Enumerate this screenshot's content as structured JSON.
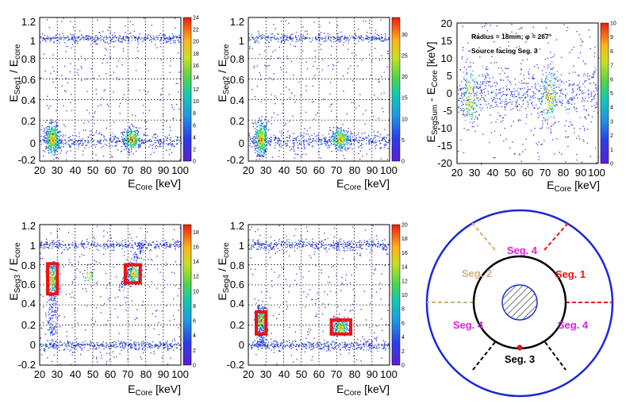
{
  "colors": {
    "frame": "#000000",
    "grid": "#000000",
    "signal_box": "#ee1111",
    "outer_circle": "#1a28d6",
    "inner_circle": "#000000",
    "core_hatch": "#2233cc",
    "tan": "#d8b07a",
    "red": "#ee1111",
    "magenta": "#e020e0",
    "black": "#000000",
    "source_dot": "#dd1111"
  },
  "chart_data": [
    {
      "id": "seg1",
      "type": "heatmap",
      "title": "",
      "xlabel": {
        "base": "E",
        "sub": "Core",
        "unit": " [keV]"
      },
      "ylabel": {
        "base": "E",
        "sub": "Seg1",
        "mid": " / E",
        "sub2": "core"
      },
      "xlim": [
        20,
        100
      ],
      "ylim": [
        -0.2,
        1.2
      ],
      "xticks": [
        "20",
        "30",
        "40",
        "50",
        "60",
        "70",
        "80",
        "90",
        "100"
      ],
      "yticks": [
        "-0.2",
        "0",
        "0.2",
        "0.4",
        "0.6",
        "0.8",
        "1",
        "1.2"
      ],
      "zmax": 24,
      "zticks": [
        "0",
        "2",
        "4",
        "6",
        "8",
        "10",
        "12",
        "14",
        "16",
        "18",
        "20",
        "22",
        "24"
      ],
      "grid": true,
      "bands": [
        {
          "orientation": "horizontal",
          "y": 1.0,
          "x_range": [
            20,
            100
          ],
          "width": 0.022,
          "weight": 5
        },
        {
          "orientation": "horizontal",
          "y": 0.0,
          "x_range": [
            20,
            100
          ],
          "width": 0.04,
          "weight": 6
        }
      ],
      "clusters": [
        {
          "x": 27,
          "y": 0.02,
          "sx": 2.0,
          "sy": 0.08,
          "weight": 22
        },
        {
          "x": 72,
          "y": 0.02,
          "sx": 2.5,
          "sy": 0.05,
          "weight": 16
        }
      ],
      "annotations": [],
      "boxes": []
    },
    {
      "id": "seg2",
      "type": "heatmap",
      "title": "",
      "xlabel": {
        "base": "E",
        "sub": "Core",
        "unit": " [keV]"
      },
      "ylabel": {
        "base": "E",
        "sub": "Seg2",
        "mid": " / E",
        "sub2": "core"
      },
      "xlim": [
        20,
        100
      ],
      "ylim": [
        -0.2,
        1.2
      ],
      "xticks": [
        "20",
        "30",
        "40",
        "50",
        "60",
        "70",
        "80",
        "90",
        "100"
      ],
      "yticks": [
        "-0.2",
        "0",
        "0.2",
        "0.4",
        "0.6",
        "0.8",
        "1",
        "1.2"
      ],
      "zmax": 34,
      "zticks": [
        "0",
        "5",
        "10",
        "15",
        "20",
        "25",
        "30"
      ],
      "grid": true,
      "bands": [
        {
          "orientation": "horizontal",
          "y": 1.0,
          "x_range": [
            20,
            100
          ],
          "width": 0.022,
          "weight": 5
        },
        {
          "orientation": "horizontal",
          "y": 0.0,
          "x_range": [
            20,
            100
          ],
          "width": 0.04,
          "weight": 6
        }
      ],
      "clusters": [
        {
          "x": 27,
          "y": 0.02,
          "sx": 2.0,
          "sy": 0.08,
          "weight": 22
        },
        {
          "x": 72,
          "y": 0.02,
          "sx": 2.5,
          "sy": 0.05,
          "weight": 16
        }
      ],
      "annotations": [],
      "boxes": []
    },
    {
      "id": "segsum",
      "type": "heatmap",
      "title": "",
      "xlabel": {
        "base": "E",
        "sub": "Core",
        "unit": " [keV]"
      },
      "ylabel": {
        "base": "E",
        "sub": "SegSum",
        "mid": " - E",
        "sub2": "Core",
        "unit": " [keV]"
      },
      "xlim": [
        20,
        100
      ],
      "ylim": [
        -20,
        20
      ],
      "xticks": [
        "20",
        "30",
        "40",
        "50",
        "60",
        "70",
        "80",
        "90",
        "100"
      ],
      "yticks": [
        "-20",
        "-15",
        "-10",
        "-5",
        "0",
        "5",
        "10",
        "15",
        "20"
      ],
      "zmax": 10,
      "zticks": [
        "0",
        "1",
        "2",
        "3",
        "4",
        "5",
        "6",
        "7",
        "8",
        "9",
        "10"
      ],
      "grid": false,
      "bands": [
        {
          "orientation": "horizontal",
          "y": 0.0,
          "x_range": [
            20,
            100
          ],
          "width": 3.5,
          "weight": 10
        }
      ],
      "clusters": [
        {
          "x": 27,
          "y": -1.0,
          "sx": 2.5,
          "sy": 4.0,
          "weight": 8
        },
        {
          "x": 72,
          "y": -1.0,
          "sx": 2.5,
          "sy": 4.0,
          "weight": 8
        }
      ],
      "annotations": [
        "Radius = 18mm; φ = 267°",
        "Source facing Seg. 3"
      ],
      "boxes": []
    },
    {
      "id": "seg3",
      "type": "heatmap",
      "title": "",
      "xlabel": {
        "base": "E",
        "sub": "Core",
        "unit": " [keV]"
      },
      "ylabel": {
        "base": "E",
        "sub": "Seg3",
        "mid": " / E",
        "sub2": "core"
      },
      "xlim": [
        20,
        100
      ],
      "ylim": [
        -0.2,
        1.2
      ],
      "xticks": [
        "20",
        "30",
        "40",
        "50",
        "60",
        "70",
        "80",
        "90",
        "100"
      ],
      "yticks": [
        "-0.2",
        "0",
        "0.2",
        "0.4",
        "0.6",
        "0.8",
        "1",
        "1.2"
      ],
      "zmax": 19,
      "zticks": [
        "0",
        "2",
        "4",
        "6",
        "8",
        "10",
        "12",
        "14",
        "16",
        "18"
      ],
      "grid": true,
      "bands": [
        {
          "orientation": "horizontal",
          "y": 1.0,
          "x_range": [
            20,
            100
          ],
          "width": 0.022,
          "weight": 5
        },
        {
          "orientation": "horizontal",
          "y": 0.0,
          "x_range": [
            20,
            100
          ],
          "width": 0.025,
          "weight": 6
        },
        {
          "orientation": "vertical",
          "x": 27,
          "y_range": [
            0.1,
            0.8
          ],
          "width": 1.5,
          "weight": 3
        },
        {
          "orientation": "diagonal",
          "from": [
            66,
            0.58
          ],
          "to": [
            78,
            1.0
          ],
          "width": 0.03,
          "weight": 2
        }
      ],
      "clusters": [
        {
          "x": 27,
          "y": 0.66,
          "sx": 1.5,
          "sy": 0.08,
          "weight": 10
        },
        {
          "x": 73,
          "y": 0.72,
          "sx": 2.0,
          "sy": 0.05,
          "weight": 10
        },
        {
          "x": 48,
          "y": 0.7,
          "sx": 1.5,
          "sy": 0.04,
          "weight": 2
        }
      ],
      "annotations": [],
      "boxes": [
        {
          "x0": 24.5,
          "x1": 30,
          "y0": 0.51,
          "y1": 0.81
        },
        {
          "x0": 68.5,
          "x1": 77,
          "y0": 0.62,
          "y1": 0.8
        }
      ]
    },
    {
      "id": "seg4",
      "type": "heatmap",
      "title": "",
      "xlabel": {
        "base": "E",
        "sub": "Core",
        "unit": " [keV]"
      },
      "ylabel": {
        "base": "E",
        "sub": "Seg4",
        "mid": " / E",
        "sub2": "core"
      },
      "xlim": [
        20,
        100
      ],
      "ylim": [
        -0.2,
        1.2
      ],
      "xticks": [
        "20",
        "30",
        "40",
        "50",
        "60",
        "70",
        "80",
        "90",
        "100"
      ],
      "yticks": [
        "-0.2",
        "0",
        "0.2",
        "0.4",
        "0.6",
        "0.8",
        "1",
        "1.2"
      ],
      "zmax": 20,
      "zticks": [
        "0",
        "2",
        "4",
        "6",
        "8",
        "10",
        "12",
        "14",
        "16",
        "18",
        "20"
      ],
      "grid": true,
      "bands": [
        {
          "orientation": "horizontal",
          "y": 1.0,
          "x_range": [
            20,
            100
          ],
          "width": 0.03,
          "weight": 6
        },
        {
          "orientation": "horizontal",
          "y": 0.0,
          "x_range": [
            20,
            100
          ],
          "width": 0.025,
          "weight": 6
        },
        {
          "orientation": "vertical",
          "x": 27,
          "y_range": [
            0.0,
            0.4
          ],
          "width": 1.5,
          "weight": 3
        }
      ],
      "clusters": [
        {
          "x": 27,
          "y": 0.25,
          "sx": 1.5,
          "sy": 0.06,
          "weight": 10
        },
        {
          "x": 72,
          "y": 0.18,
          "sx": 2.0,
          "sy": 0.04,
          "weight": 12
        }
      ],
      "annotations": [],
      "boxes": [
        {
          "x0": 24.5,
          "x1": 30,
          "y0": 0.11,
          "y1": 0.33
        },
        {
          "x0": 67,
          "x1": 78,
          "y0": 0.11,
          "y1": 0.25
        }
      ]
    }
  ],
  "diagram": {
    "labels": [
      {
        "key": "seg4_top",
        "text": "Seg. 4",
        "color": "magenta"
      },
      {
        "key": "seg2_left",
        "text": "Seg. 2",
        "color": "tan"
      },
      {
        "key": "seg1_right",
        "text": "Seg. 1",
        "color": "red"
      },
      {
        "key": "seg4_left",
        "text": "Seg. 4",
        "color": "magenta"
      },
      {
        "key": "seg4_right",
        "text": "Seg. 4",
        "color": "magenta"
      },
      {
        "key": "seg3_bottom",
        "text": "Seg. 3",
        "color": "black"
      }
    ]
  }
}
